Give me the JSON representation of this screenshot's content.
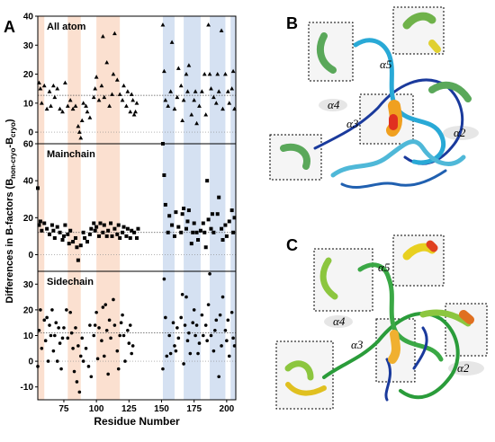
{
  "panel_a": {
    "label": "A",
    "ylabel_parts": [
      "Differences in B-factors (B",
      "non-cryo",
      "-B",
      "cryo",
      ")"
    ],
    "shaded_regions": [
      {
        "start": 55,
        "end": 60,
        "color": "#fbe0d0"
      },
      {
        "start": 78,
        "end": 88,
        "color": "#fbe0d0"
      },
      {
        "start": 100,
        "end": 118,
        "color": "#fbe0d0"
      },
      {
        "start": 151,
        "end": 160,
        "color": "#d5e1f2"
      },
      {
        "start": 167,
        "end": 180,
        "color": "#d5e1f2"
      },
      {
        "start": 187,
        "end": 199,
        "color": "#d5e1f2"
      },
      {
        "start": 203,
        "end": 207,
        "color": "#d5e1f2"
      }
    ]
  },
  "chart_data": [
    {
      "type": "scatter",
      "title": "All atom",
      "marker": "triangle",
      "color": "#000000",
      "xlim": [
        55,
        207
      ],
      "ylim": [
        -4,
        40
      ],
      "yticks": [
        0,
        10,
        20,
        30,
        40
      ],
      "hline": 12.7,
      "baseline": 0,
      "x": [
        56,
        57,
        58,
        60,
        62,
        64,
        65,
        67,
        68,
        70,
        72,
        74,
        76,
        78,
        80,
        82,
        84,
        86,
        87,
        88,
        89,
        90,
        92,
        93,
        95,
        98,
        99,
        100,
        102,
        104,
        105,
        106,
        108,
        110,
        112,
        113,
        114,
        116,
        118,
        120,
        121,
        123,
        124,
        126,
        127,
        128,
        129,
        130,
        131,
        151,
        152,
        153,
        155,
        157,
        158,
        160,
        162,
        163,
        165,
        166,
        167,
        169,
        170,
        171,
        173,
        175,
        176,
        177,
        179,
        181,
        183,
        184,
        186,
        187,
        188,
        190,
        192,
        193,
        194,
        196,
        197,
        199,
        201,
        202,
        204,
        205,
        206
      ],
      "y": [
        17,
        15,
        10,
        16,
        8,
        14,
        9,
        16,
        12,
        15,
        8,
        7,
        17,
        9,
        11,
        8,
        9,
        2,
        0,
        -2,
        4,
        10,
        9,
        7,
        5,
        12,
        15,
        19,
        11,
        16,
        33,
        12,
        24,
        9,
        13,
        20,
        34,
        18,
        13,
        11,
        16,
        9,
        14,
        7,
        13,
        11,
        6,
        7,
        10,
        37,
        21,
        11,
        9,
        14,
        31,
        8,
        12,
        22,
        16,
        4,
        11,
        20,
        14,
        23,
        6,
        11,
        14,
        3,
        9,
        14,
        20,
        6,
        37,
        20,
        15,
        12,
        10,
        20,
        14,
        35,
        8,
        20,
        14,
        10,
        15,
        21,
        8
      ]
    },
    {
      "type": "scatter",
      "title": "Mainchain",
      "marker": "square",
      "color": "#000000",
      "xlim": [
        55,
        207
      ],
      "ylim": [
        -9,
        60
      ],
      "yticks": [
        0,
        20,
        40,
        60
      ],
      "hline": 12,
      "baseline": 0,
      "x": [
        55,
        56,
        57,
        58,
        60,
        62,
        64,
        66,
        67,
        68,
        70,
        72,
        74,
        75,
        76,
        78,
        79,
        80,
        82,
        84,
        85,
        86,
        88,
        90,
        91,
        93,
        95,
        96,
        98,
        99,
        100,
        102,
        103,
        105,
        106,
        108,
        109,
        111,
        112,
        114,
        116,
        117,
        118,
        120,
        121,
        123,
        124,
        126,
        127,
        129,
        131,
        132,
        151,
        152,
        153,
        155,
        156,
        158,
        160,
        161,
        163,
        165,
        166,
        167,
        169,
        170,
        171,
        173,
        174,
        175,
        177,
        178,
        180,
        182,
        183,
        184,
        185,
        186,
        188,
        189,
        190,
        193,
        194,
        196,
        197,
        199,
        200,
        202,
        204,
        205,
        206
      ],
      "y": [
        36,
        16,
        18,
        13,
        17,
        14,
        11,
        16,
        13,
        9,
        15,
        12,
        8,
        10,
        16,
        11,
        6,
        13,
        7,
        9,
        4,
        -3,
        5,
        12,
        9,
        7,
        11,
        14,
        17,
        13,
        15,
        10,
        17,
        12,
        16,
        10,
        13,
        17,
        10,
        14,
        11,
        16,
        9,
        12,
        15,
        10,
        14,
        9,
        13,
        12,
        9,
        14,
        60,
        43,
        27,
        12,
        21,
        16,
        10,
        23,
        15,
        12,
        22,
        25,
        14,
        18,
        24,
        6,
        12,
        17,
        12,
        8,
        13,
        17,
        12,
        4,
        40,
        19,
        14,
        22,
        12,
        22,
        31,
        14,
        8,
        16,
        10,
        18,
        24,
        12,
        20
      ]
    },
    {
      "type": "scatter",
      "title": "Sidechain",
      "marker": "circle",
      "color": "#000000",
      "xlim": [
        55,
        207
      ],
      "ylim": [
        -15,
        35
      ],
      "yticks": [
        -10,
        0,
        10,
        20,
        30
      ],
      "hline": 11,
      "baseline": 0,
      "xlabel": "Residue Number",
      "xticks": [
        75,
        100,
        125,
        150,
        175,
        200
      ],
      "x": [
        55,
        56,
        57,
        58,
        60,
        61,
        62,
        63,
        64,
        65,
        66,
        67,
        68,
        69,
        70,
        71,
        72,
        73,
        74,
        75,
        77,
        78,
        80,
        81,
        82,
        83,
        84,
        85,
        86,
        87,
        88,
        89,
        90,
        92,
        94,
        95,
        96,
        98,
        99,
        100,
        101,
        102,
        104,
        105,
        106,
        107,
        108,
        109,
        110,
        111,
        113,
        114,
        116,
        117,
        118,
        119,
        120,
        121,
        122,
        124,
        125,
        126,
        127,
        128,
        151,
        152,
        153,
        154,
        156,
        157,
        159,
        160,
        161,
        162,
        163,
        165,
        166,
        167,
        168,
        169,
        170,
        171,
        172,
        174,
        175,
        176,
        177,
        178,
        179,
        181,
        182,
        184,
        185,
        186,
        187,
        188,
        190,
        191,
        192,
        194,
        195,
        196,
        197,
        199,
        200,
        201,
        202,
        204,
        205,
        206
      ],
      "y": [
        -2,
        12,
        20,
        5,
        16,
        8,
        17,
        0,
        14,
        10,
        20,
        4,
        10,
        15,
        0,
        13,
        7,
        -3,
        9,
        13,
        20,
        9,
        19,
        11,
        5,
        -4,
        13,
        -8,
        6,
        -12,
        2,
        9,
        0,
        5,
        -2,
        14,
        -6,
        10,
        14,
        19,
        1,
        13,
        8,
        21,
        2,
        22,
        12,
        -5,
        16,
        9,
        24,
        14,
        4,
        -3,
        10,
        15,
        18,
        10,
        0,
        12,
        7,
        14,
        3,
        6,
        -3,
        32,
        17,
        2,
        10,
        3,
        15,
        6,
        4,
        13,
        9,
        17,
        26,
        -1,
        14,
        25,
        8,
        11,
        3,
        15,
        20,
        10,
        14,
        3,
        7,
        18,
        10,
        14,
        8,
        22,
        34,
        10,
        4,
        12,
        16,
        -6,
        18,
        6,
        25,
        12,
        8,
        16,
        2,
        19,
        9,
        6
      ]
    }
  ],
  "panel_b": {
    "label": "B",
    "helices": [
      "α5",
      "α4",
      "α3",
      "α2"
    ]
  },
  "panel_c": {
    "label": "C",
    "helices": [
      "α5",
      "α4",
      "α3",
      "α2"
    ]
  }
}
